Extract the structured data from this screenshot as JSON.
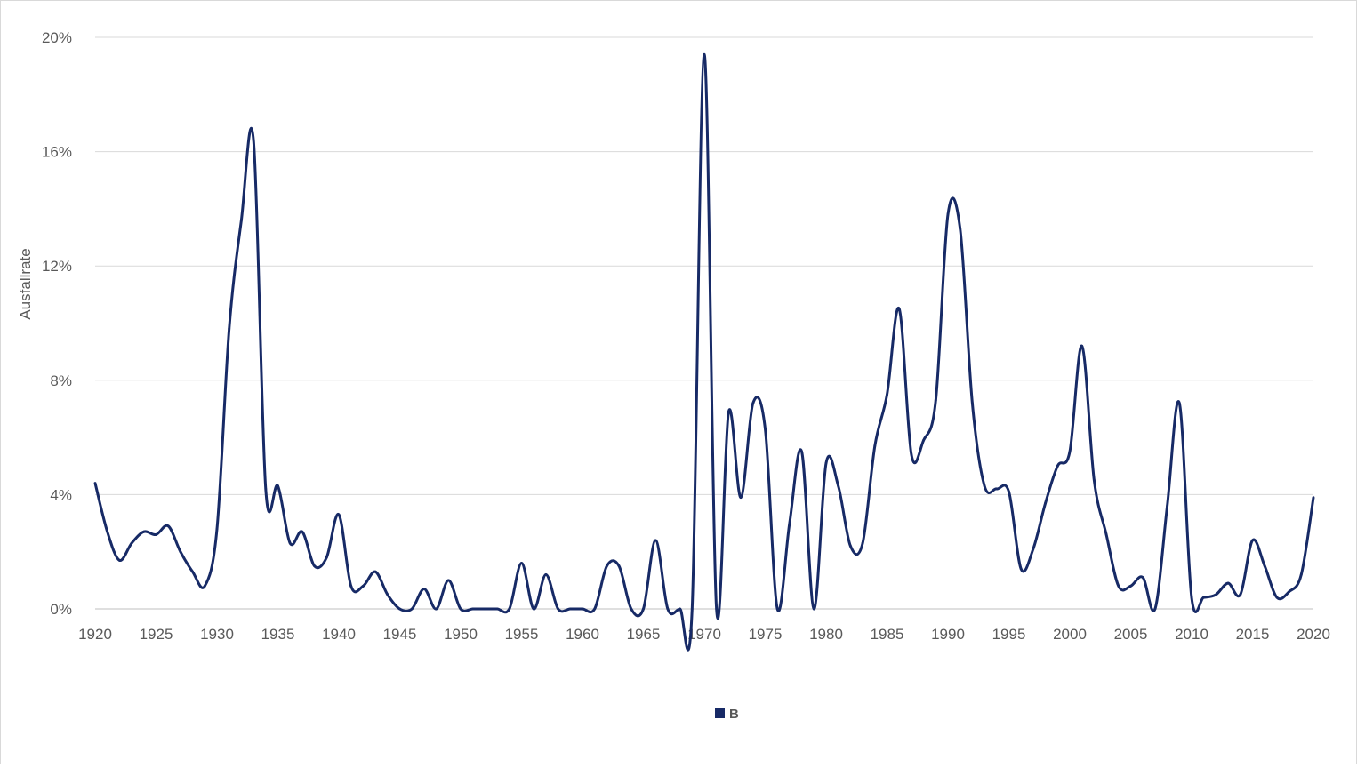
{
  "chart_data": {
    "type": "line",
    "title": "",
    "xlabel": "",
    "ylabel": "Ausfallrate",
    "xlim": [
      1920,
      2020
    ],
    "ylim": [
      0,
      20
    ],
    "y_unit": "%",
    "grid": "horizontal",
    "legend_position": "bottom",
    "x_ticks": [
      "1920",
      "1925",
      "1930",
      "1935",
      "1940",
      "1945",
      "1950",
      "1955",
      "1960",
      "1965",
      "1970",
      "1975",
      "1980",
      "1985",
      "1990",
      "1995",
      "2000",
      "2005",
      "2010",
      "2015",
      "2020"
    ],
    "y_ticks": [
      "0%",
      "4%",
      "8%",
      "12%",
      "16%",
      "20%"
    ],
    "series": [
      {
        "name": "B",
        "color": "#172a66",
        "x": [
          1920,
          1921,
          1922,
          1923,
          1924,
          1925,
          1926,
          1927,
          1928,
          1929,
          1930,
          1931,
          1932,
          1933,
          1934,
          1935,
          1936,
          1937,
          1938,
          1939,
          1940,
          1941,
          1942,
          1943,
          1944,
          1945,
          1946,
          1947,
          1948,
          1949,
          1950,
          1951,
          1952,
          1953,
          1954,
          1955,
          1956,
          1957,
          1958,
          1959,
          1960,
          1961,
          1962,
          1963,
          1964,
          1965,
          1966,
          1967,
          1968,
          1969,
          1970,
          1971,
          1972,
          1973,
          1974,
          1975,
          1976,
          1977,
          1978,
          1979,
          1980,
          1981,
          1982,
          1983,
          1984,
          1985,
          1986,
          1987,
          1988,
          1989,
          1990,
          1991,
          1992,
          1993,
          1994,
          1995,
          1996,
          1997,
          1998,
          1999,
          2000,
          2001,
          2002,
          2003,
          2004,
          2005,
          2006,
          2007,
          2008,
          2009,
          2010,
          2011,
          2012,
          2013,
          2014,
          2015,
          2016,
          2017,
          2018,
          2019,
          2020
        ],
        "values": [
          4.4,
          2.7,
          1.7,
          2.3,
          2.7,
          2.6,
          2.9,
          2.0,
          1.3,
          0.8,
          2.8,
          9.8,
          13.6,
          16.4,
          4.2,
          4.3,
          2.3,
          2.7,
          1.5,
          1.8,
          3.3,
          0.8,
          0.8,
          1.3,
          0.5,
          0.0,
          0.0,
          0.7,
          0.0,
          1.0,
          0.0,
          0.0,
          0.0,
          0.0,
          0.0,
          1.6,
          0.0,
          1.2,
          0.0,
          0.0,
          0.0,
          0.0,
          1.5,
          1.5,
          0.0,
          0.0,
          2.4,
          0.0,
          0.0,
          0.0,
          19.4,
          0.0,
          6.9,
          3.9,
          7.2,
          6.3,
          0.0,
          3.0,
          5.5,
          0.0,
          5.1,
          4.3,
          2.2,
          2.3,
          5.7,
          7.5,
          10.5,
          5.4,
          5.9,
          7.3,
          13.8,
          13.3,
          7.2,
          4.3,
          4.2,
          4.1,
          1.4,
          2.1,
          3.7,
          5.0,
          5.5,
          9.2,
          4.5,
          2.6,
          0.8,
          0.8,
          1.1,
          0.0,
          3.6,
          7.2,
          0.4,
          0.4,
          0.5,
          0.9,
          0.5,
          2.4,
          1.5,
          0.4,
          0.6,
          1.2,
          3.9
        ]
      }
    ]
  }
}
